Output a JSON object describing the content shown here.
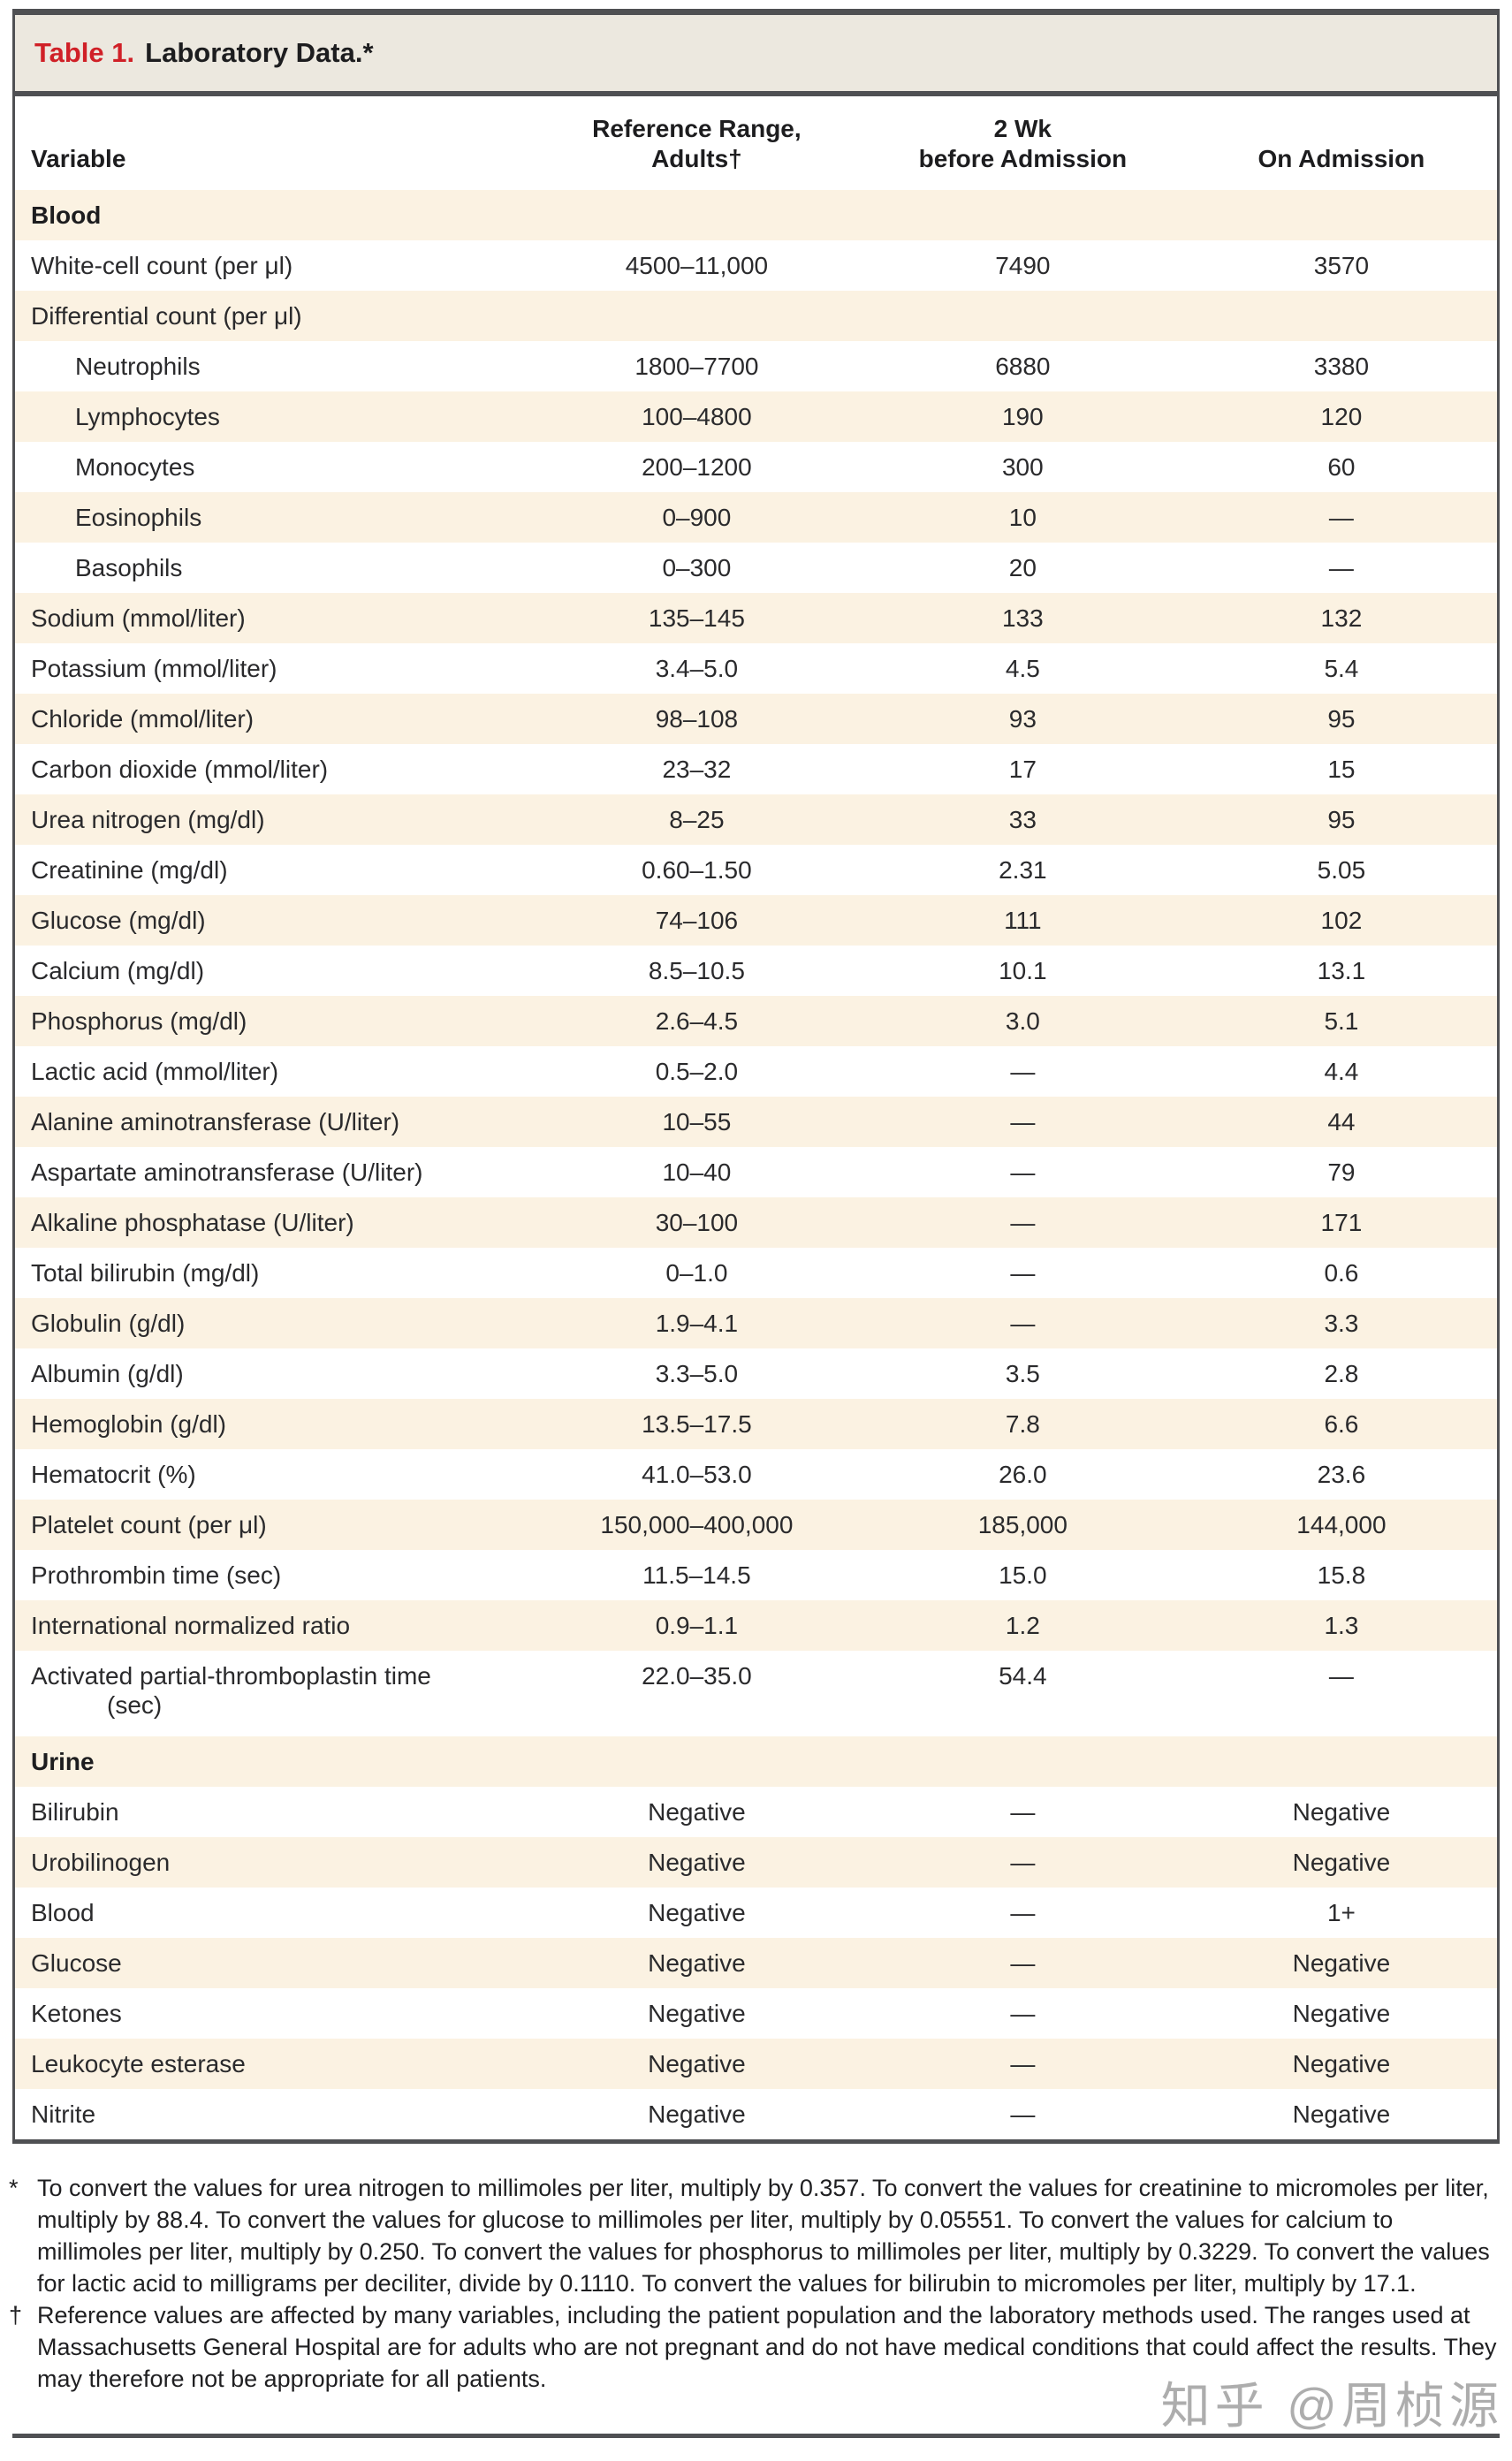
{
  "title": {
    "number": "Table 1.",
    "text": "Laboratory Data.*"
  },
  "columns": [
    {
      "id": "variable",
      "lines": [
        "Variable"
      ]
    },
    {
      "id": "reference-range",
      "lines": [
        "Reference Range,",
        "Adults†"
      ]
    },
    {
      "id": "two-wk-before-admission",
      "lines": [
        "2 Wk",
        "before Admission"
      ]
    },
    {
      "id": "on-admission",
      "lines": [
        "On Admission"
      ]
    }
  ],
  "sections": [
    {
      "label": "Blood",
      "rows": [
        {
          "label": "White-cell count (per μl)",
          "indent": 0,
          "values": [
            "4500–11,000",
            "7490",
            "3570"
          ]
        },
        {
          "label": "Differential count (per μl)",
          "indent": 0,
          "values": [
            "",
            "",
            ""
          ]
        },
        {
          "label": "Neutrophils",
          "indent": 1,
          "values": [
            "1800–7700",
            "6880",
            "3380"
          ]
        },
        {
          "label": "Lymphocytes",
          "indent": 1,
          "values": [
            "100–4800",
            "190",
            "120"
          ]
        },
        {
          "label": "Monocytes",
          "indent": 1,
          "values": [
            "200–1200",
            "300",
            "60"
          ]
        },
        {
          "label": "Eosinophils",
          "indent": 1,
          "values": [
            "0–900",
            "10",
            "—"
          ]
        },
        {
          "label": "Basophils",
          "indent": 1,
          "values": [
            "0–300",
            "20",
            "—"
          ]
        },
        {
          "label": "Sodium (mmol/liter)",
          "indent": 0,
          "values": [
            "135–145",
            "133",
            "132"
          ]
        },
        {
          "label": "Potassium (mmol/liter)",
          "indent": 0,
          "values": [
            "3.4–5.0",
            "4.5",
            "5.4"
          ]
        },
        {
          "label": "Chloride (mmol/liter)",
          "indent": 0,
          "values": [
            "98–108",
            "93",
            "95"
          ]
        },
        {
          "label": "Carbon dioxide (mmol/liter)",
          "indent": 0,
          "values": [
            "23–32",
            "17",
            "15"
          ]
        },
        {
          "label": "Urea nitrogen (mg/dl)",
          "indent": 0,
          "values": [
            "8–25",
            "33",
            "95"
          ]
        },
        {
          "label": "Creatinine (mg/dl)",
          "indent": 0,
          "values": [
            "0.60–1.50",
            "2.31",
            "5.05"
          ]
        },
        {
          "label": "Glucose (mg/dl)",
          "indent": 0,
          "values": [
            "74–106",
            "111",
            "102"
          ]
        },
        {
          "label": "Calcium (mg/dl)",
          "indent": 0,
          "values": [
            "8.5–10.5",
            "10.1",
            "13.1"
          ]
        },
        {
          "label": "Phosphorus (mg/dl)",
          "indent": 0,
          "values": [
            "2.6–4.5",
            "3.0",
            "5.1"
          ]
        },
        {
          "label": "Lactic acid (mmol/liter)",
          "indent": 0,
          "values": [
            "0.5–2.0",
            "—",
            "4.4"
          ]
        },
        {
          "label": "Alanine aminotransferase (U/liter)",
          "indent": 0,
          "values": [
            "10–55",
            "—",
            "44"
          ]
        },
        {
          "label": "Aspartate aminotransferase (U/liter)",
          "indent": 0,
          "values": [
            "10–40",
            "—",
            "79"
          ]
        },
        {
          "label": "Alkaline phosphatase (U/liter)",
          "indent": 0,
          "values": [
            "30–100",
            "—",
            "171"
          ]
        },
        {
          "label": "Total bilirubin (mg/dl)",
          "indent": 0,
          "values": [
            "0–1.0",
            "—",
            "0.6"
          ]
        },
        {
          "label": "Globulin (g/dl)",
          "indent": 0,
          "values": [
            "1.9–4.1",
            "—",
            "3.3"
          ]
        },
        {
          "label": "Albumin (g/dl)",
          "indent": 0,
          "values": [
            "3.3–5.0",
            "3.5",
            "2.8"
          ]
        },
        {
          "label": "Hemoglobin (g/dl)",
          "indent": 0,
          "values": [
            "13.5–17.5",
            "7.8",
            "6.6"
          ]
        },
        {
          "label": "Hematocrit (%)",
          "indent": 0,
          "values": [
            "41.0–53.0",
            "26.0",
            "23.6"
          ]
        },
        {
          "label": "Platelet count (per μl)",
          "indent": 0,
          "values": [
            "150,000–400,000",
            "185,000",
            "144,000"
          ]
        },
        {
          "label": "Prothrombin time (sec)",
          "indent": 0,
          "values": [
            "11.5–14.5",
            "15.0",
            "15.8"
          ]
        },
        {
          "label": "International normalized ratio",
          "indent": 0,
          "values": [
            "0.9–1.1",
            "1.2",
            "1.3"
          ]
        },
        {
          "label": "Activated partial-thromboplastin time",
          "label2": "(sec)",
          "indent": 0,
          "values": [
            "22.0–35.0",
            "54.4",
            "—"
          ]
        }
      ]
    },
    {
      "label": "Urine",
      "rows": [
        {
          "label": "Bilirubin",
          "indent": 0,
          "values": [
            "Negative",
            "—",
            "Negative"
          ]
        },
        {
          "label": "Urobilinogen",
          "indent": 0,
          "values": [
            "Negative",
            "—",
            "Negative"
          ]
        },
        {
          "label": "Blood",
          "indent": 0,
          "values": [
            "Negative",
            "—",
            "1+"
          ]
        },
        {
          "label": "Glucose",
          "indent": 0,
          "values": [
            "Negative",
            "—",
            "Negative"
          ]
        },
        {
          "label": "Ketones",
          "indent": 0,
          "values": [
            "Negative",
            "—",
            "Negative"
          ]
        },
        {
          "label": "Leukocyte esterase",
          "indent": 0,
          "values": [
            "Negative",
            "—",
            "Negative"
          ]
        },
        {
          "label": "Nitrite",
          "indent": 0,
          "values": [
            "Negative",
            "—",
            "Negative"
          ]
        }
      ]
    }
  ],
  "footnotes": [
    {
      "marker": "*",
      "text": "To convert the values for urea nitrogen to millimoles per liter, multiply by 0.357. To convert the values for creatinine to micromoles per liter, multiply by 88.4. To convert the values for glucose to millimoles per liter, multiply by 0.05551. To convert the values for calcium to millimoles per liter, multiply by 0.250. To convert the values for phosphorus to millimoles per liter, multiply by 0.3229. To convert the values for lactic acid to milligrams per deciliter, divide by 0.1110. To convert the values for bilirubin to micromoles per liter, multiply by 17.1."
    },
    {
      "marker": "†",
      "text": "Reference values are affected by many variables, including the patient population and the laboratory methods used. The ranges used at Massachusetts General Hospital are for adults who are not pregnant and do not have medical conditions that could affect the results. They may therefore not be appropriate for all patients."
    }
  ],
  "watermark": "知乎 @周桢源",
  "colors": {
    "accent_red": "#d02027",
    "stripe_cream": "#fbf2e2",
    "title_bar": "#ece8df",
    "rule_gray": "#4f5053"
  }
}
